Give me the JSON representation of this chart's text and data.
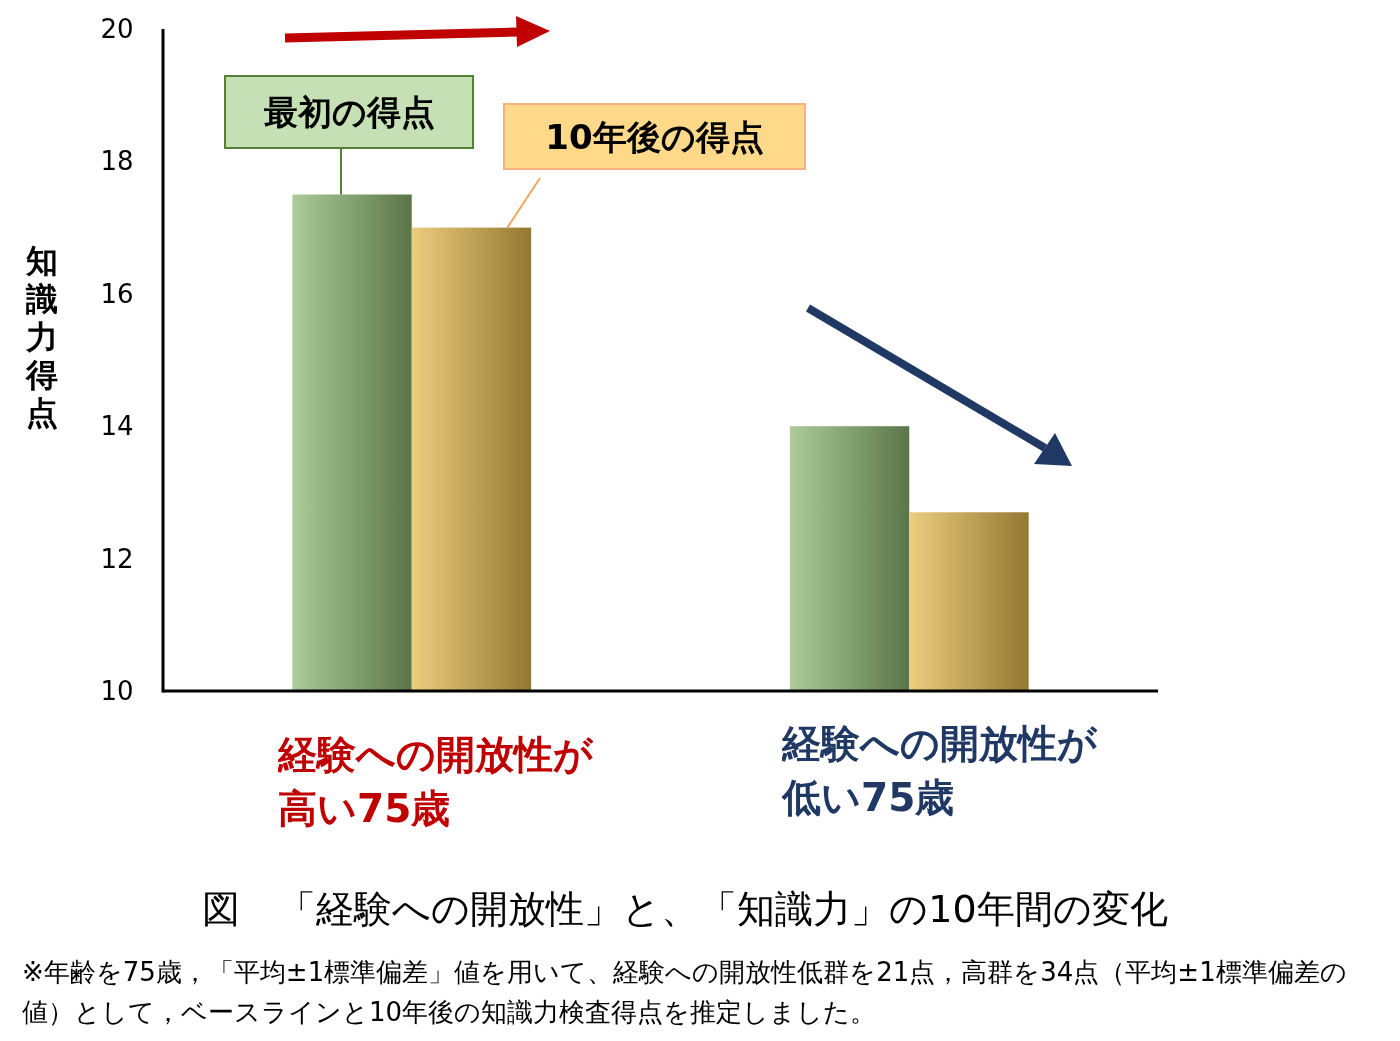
{
  "chart_data": {
    "type": "bar",
    "title": "図　「経験への開放性」と、「知識力」の10年間の変化",
    "ylabel": "知識力得点",
    "categories": [
      "経験への開放性が高い75歳",
      "経験への開放性が低い75歳"
    ],
    "series": [
      {
        "name": "最初の得点",
        "color": "#8ab66e",
        "values": [
          17.5,
          14.0
        ]
      },
      {
        "name": "10年後の得点",
        "color": "#e3b94a",
        "values": [
          17.0,
          12.7
        ]
      }
    ],
    "ylim": [
      10,
      20
    ],
    "yticks": [
      10,
      12,
      14,
      16,
      18,
      20
    ],
    "legend": "top left",
    "annotations": [
      "※年齢を75歳，「平均±1標準偏差」値を用いて、経験への開放性低群を21点，高群を34点（平均±1標準偏差の値）として，ベースラインと10年後の知識力検査得点を推定しました。"
    ]
  }
}
